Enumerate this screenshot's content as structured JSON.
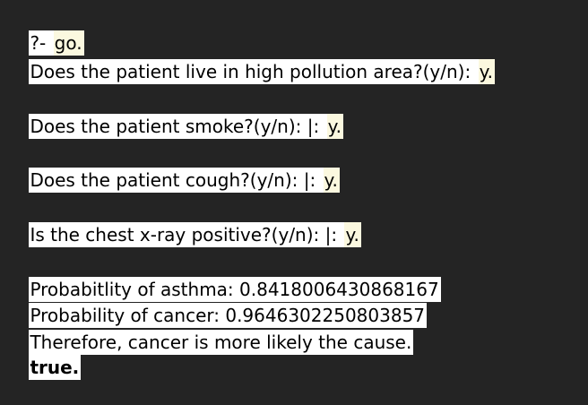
{
  "session": {
    "prompt_line": {
      "prompt": "?- ",
      "query": "go."
    },
    "questions": [
      {
        "text": "Does the patient live in high pollution area?(y/n): ",
        "answer": "y."
      },
      {
        "text": "Does the patient smoke?(y/n): |: ",
        "answer": "y."
      },
      {
        "text": "Does the patient cough?(y/n): |: ",
        "answer": "y."
      },
      {
        "text": "Is the chest x-ray positive?(y/n): |: ",
        "answer": "y."
      }
    ],
    "results": [
      "Probabitlity of asthma: 0.8418006430868167",
      "Probability of cancer: 0.9646302250803857",
      "Therefore, cancer is more likely the cause."
    ],
    "final": "true."
  }
}
